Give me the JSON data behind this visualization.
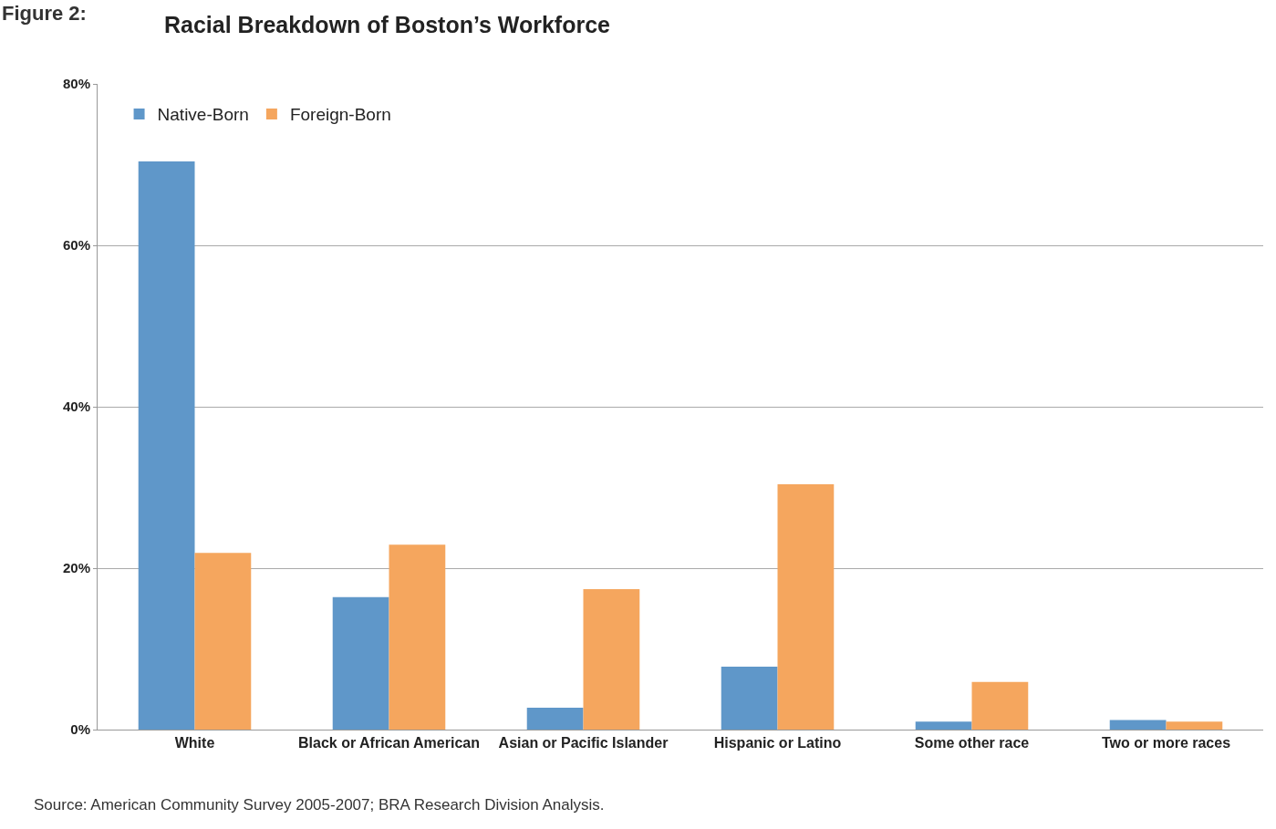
{
  "chart_data": {
    "type": "bar",
    "title": "Racial Breakdown of Boston’s Workforce",
    "categories": [
      "White",
      "Black or African American",
      "Asian or Pacific Islander",
      "Hispanic or Latino",
      "Some other race",
      "Two or more races"
    ],
    "series": [
      {
        "name": "Native-Born",
        "color": "#5f97c9",
        "values": [
          70.4,
          16.4,
          2.7,
          7.8,
          1.0,
          1.2
        ]
      },
      {
        "name": "Foreign-Born",
        "color": "#f5a65e",
        "values": [
          21.9,
          22.9,
          17.4,
          30.4,
          5.9,
          1.0
        ]
      }
    ],
    "ylim": [
      0,
      80
    ],
    "yticks": [
      {
        "value": 0,
        "label": "0%"
      },
      {
        "value": 20,
        "label": "20%"
      },
      {
        "value": 40,
        "label": "40%"
      },
      {
        "value": 60,
        "label": "60%"
      },
      {
        "value": 80,
        "label": "80%"
      }
    ],
    "grid": "y",
    "legend": "top left",
    "annotations": [
      "Figure 2:",
      "Source: American Community Survey 2005-2007; BRA Research Division Analysis."
    ]
  }
}
